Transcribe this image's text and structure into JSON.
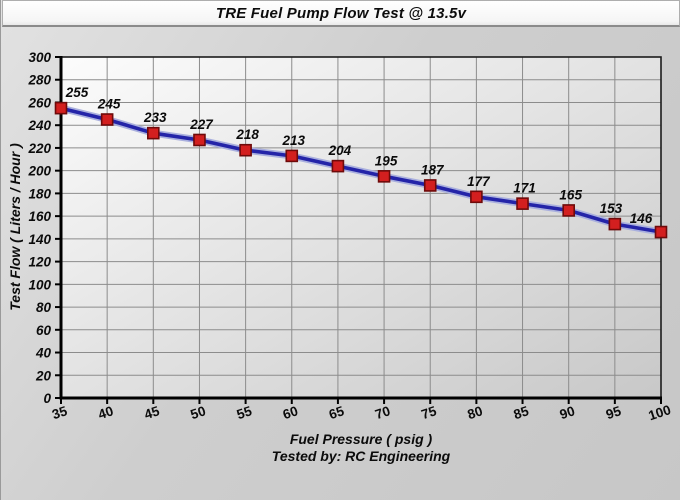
{
  "chart_data": {
    "type": "line",
    "title": "TRE Fuel Pump Flow Test @ 13.5v",
    "xlabel": "Fuel Pressure ( psig )",
    "ylabel": "Test Flow ( Liters / Hour )",
    "footer_note": "Tested by: RC Engineering",
    "x": [
      35,
      40,
      45,
      50,
      55,
      60,
      65,
      70,
      75,
      80,
      85,
      90,
      95,
      100
    ],
    "series": [
      {
        "name": "Test Flow",
        "values": [
          255,
          245,
          233,
          227,
          218,
          213,
          204,
          195,
          187,
          177,
          171,
          165,
          153,
          146
        ]
      }
    ],
    "xlim": [
      35,
      100
    ],
    "ylim": [
      0,
      300
    ],
    "x_tick_step": 5,
    "y_tick_step": 20,
    "grid": true,
    "point_labels_visible": true,
    "legend_position": "none",
    "colors": {
      "line": "#2424a8",
      "line_halo": "#aab0de",
      "marker_fill": "#d31f1f",
      "marker_stroke": "#6e0a0a",
      "grid": "#8c8c8c",
      "axis": "#000000",
      "plot_border": "#1c1c1c",
      "text": "#0b0b0b",
      "plot_bg_light": "#fcfcfc",
      "plot_bg_dark": "#c8c8c8"
    }
  }
}
